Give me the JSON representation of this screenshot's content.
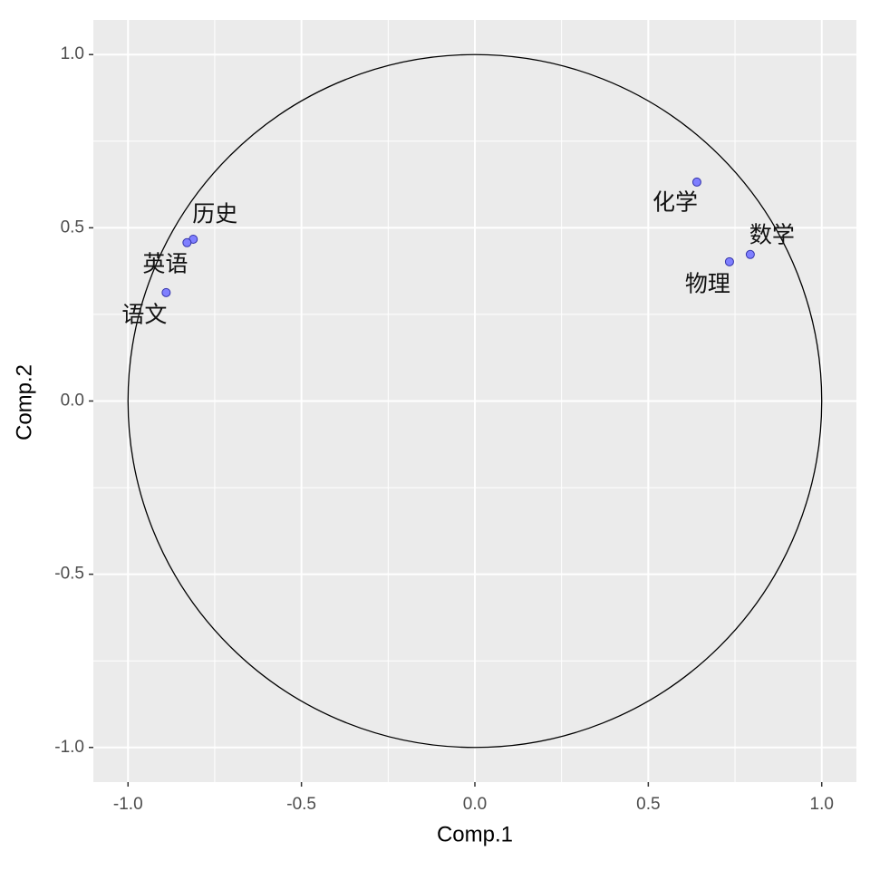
{
  "chart_data": {
    "type": "scatter",
    "x_label": "Comp.1",
    "y_label": "Comp.2",
    "series": [
      {
        "labels": [
          "化学",
          "数学",
          "物理",
          "历史",
          "英语",
          "语文"
        ],
        "x": [
          0.64,
          0.794,
          0.734,
          -0.812,
          -0.83,
          -0.89
        ],
        "values": [
          0.632,
          0.423,
          0.402,
          0.467,
          0.457,
          0.313
        ],
        "color": "#7f7fff"
      }
    ],
    "reference_circle": {
      "center": [
        0,
        0
      ],
      "radius": 1
    },
    "xlim": [
      -1.1,
      1.1
    ],
    "ylim": [
      -1.1,
      1.1
    ],
    "xticks": [
      {
        "value": -1,
        "label": "-1.0"
      },
      {
        "value": -0.5,
        "label": "-0.5"
      },
      {
        "value": 0,
        "label": "0.0"
      },
      {
        "value": 0.5,
        "label": "0.5"
      },
      {
        "value": 1,
        "label": "1.0"
      }
    ],
    "yticks": [
      {
        "value": -1,
        "label": "-1.0"
      },
      {
        "value": -0.5,
        "label": "-0.5"
      },
      {
        "value": 0,
        "label": "0.0"
      },
      {
        "value": 0.5,
        "label": "0.5"
      },
      {
        "value": 1,
        "label": "1.0"
      }
    ],
    "grid": true
  }
}
